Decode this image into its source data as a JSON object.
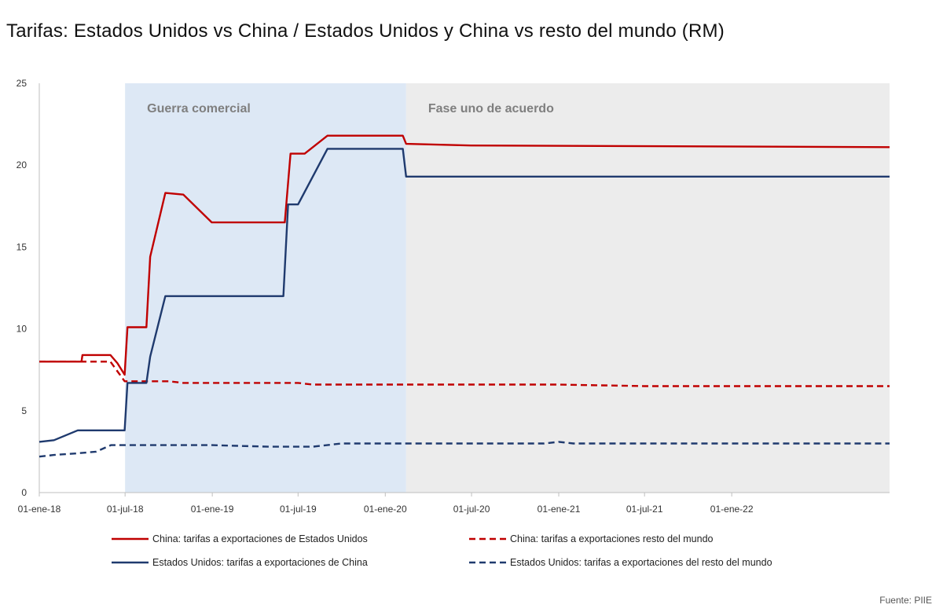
{
  "title": "Tarifas: Estados Unidos vs China / Estados Unidos y China vs resto del mundo (RM)",
  "source": "Fuente: PIIE",
  "chart_data": {
    "type": "line",
    "title": "Tarifas: Estados Unidos vs China / Estados Unidos y China vs resto del mundo (RM)",
    "ylim": [
      0,
      25
    ],
    "y_ticks": [
      0,
      5,
      10,
      15,
      20,
      25
    ],
    "x_range": [
      "2018-01-01",
      "2022-11-30"
    ],
    "x_ticks": [
      {
        "date": "2018-01-01",
        "label": "01-ene-18"
      },
      {
        "date": "2018-07-01",
        "label": "01-jul-18"
      },
      {
        "date": "2019-01-01",
        "label": "01-ene-19"
      },
      {
        "date": "2019-07-01",
        "label": "01-jul-19"
      },
      {
        "date": "2020-01-01",
        "label": "01-ene-20"
      },
      {
        "date": "2020-07-01",
        "label": "01-jul-20"
      },
      {
        "date": "2021-01-01",
        "label": "01-ene-21"
      },
      {
        "date": "2021-07-01",
        "label": "01-jul-21"
      },
      {
        "date": "2022-01-01",
        "label": "01-ene-22"
      }
    ],
    "grid": false,
    "legend_position": "bottom",
    "shaded_regions": [
      {
        "label": "Guerra comercial",
        "start": "2018-07-01",
        "end": "2020-02-14",
        "color": "#dde8f5"
      },
      {
        "label": "Fase uno de acuerdo",
        "start": "2020-02-14",
        "end": "2022-11-30",
        "color": "#ececec"
      }
    ],
    "series": [
      {
        "name": "China: tarifas a exportaciones de Estados Unidos",
        "color": "#c00000",
        "dash": "solid",
        "points": [
          [
            "2018-01-01",
            8.0
          ],
          [
            "2018-03-31",
            8.0
          ],
          [
            "2018-04-02",
            8.4
          ],
          [
            "2018-05-31",
            8.4
          ],
          [
            "2018-06-15",
            7.9
          ],
          [
            "2018-06-30",
            7.2
          ],
          [
            "2018-07-06",
            10.1
          ],
          [
            "2018-08-15",
            10.1
          ],
          [
            "2018-08-23",
            14.4
          ],
          [
            "2018-09-24",
            18.3
          ],
          [
            "2018-11-01",
            18.2
          ],
          [
            "2018-12-31",
            16.5
          ],
          [
            "2019-05-31",
            16.5
          ],
          [
            "2019-06-03",
            16.5
          ],
          [
            "2019-06-15",
            20.7
          ],
          [
            "2019-07-15",
            20.7
          ],
          [
            "2019-09-01",
            21.8
          ],
          [
            "2020-02-07",
            21.8
          ],
          [
            "2020-02-14",
            21.3
          ],
          [
            "2020-06-30",
            21.2
          ],
          [
            "2022-11-30",
            21.1
          ]
        ]
      },
      {
        "name": "China: tarifas a exportaciones resto del mundo",
        "color": "#c00000",
        "dash": "dashed",
        "points": [
          [
            "2018-01-01",
            8.0
          ],
          [
            "2018-03-31",
            8.0
          ],
          [
            "2018-04-02",
            8.0
          ],
          [
            "2018-05-31",
            8.0
          ],
          [
            "2018-06-30",
            6.8
          ],
          [
            "2018-10-01",
            6.8
          ],
          [
            "2018-11-01",
            6.7
          ],
          [
            "2019-07-01",
            6.7
          ],
          [
            "2019-08-01",
            6.6
          ],
          [
            "2020-07-01",
            6.6
          ],
          [
            "2021-01-01",
            6.6
          ],
          [
            "2021-07-01",
            6.5
          ],
          [
            "2022-11-30",
            6.5
          ]
        ]
      },
      {
        "name": "Estados Unidos: tarifas a exportaciones de China",
        "color": "#1f3a6e",
        "dash": "solid",
        "points": [
          [
            "2018-01-01",
            3.1
          ],
          [
            "2018-02-01",
            3.2
          ],
          [
            "2018-03-23",
            3.8
          ],
          [
            "2018-06-30",
            3.8
          ],
          [
            "2018-07-06",
            6.7
          ],
          [
            "2018-08-15",
            6.7
          ],
          [
            "2018-08-23",
            8.3
          ],
          [
            "2018-09-24",
            12.0
          ],
          [
            "2019-05-31",
            12.0
          ],
          [
            "2019-06-10",
            17.6
          ],
          [
            "2019-07-01",
            17.6
          ],
          [
            "2019-09-01",
            21.0
          ],
          [
            "2020-02-07",
            21.0
          ],
          [
            "2020-02-14",
            19.3
          ],
          [
            "2022-11-30",
            19.3
          ]
        ]
      },
      {
        "name": "Estados Unidos: tarifas a exportaciones del resto del mundo",
        "color": "#1f3a6e",
        "dash": "dashed",
        "points": [
          [
            "2018-01-01",
            2.2
          ],
          [
            "2018-02-01",
            2.3
          ],
          [
            "2018-03-23",
            2.4
          ],
          [
            "2018-05-01",
            2.5
          ],
          [
            "2018-06-01",
            2.9
          ],
          [
            "2019-01-01",
            2.9
          ],
          [
            "2019-05-01",
            2.8
          ],
          [
            "2019-08-01",
            2.8
          ],
          [
            "2019-10-01",
            3.0
          ],
          [
            "2020-12-01",
            3.0
          ],
          [
            "2021-01-01",
            3.1
          ],
          [
            "2021-02-01",
            3.0
          ],
          [
            "2022-11-30",
            3.0
          ]
        ]
      }
    ]
  }
}
